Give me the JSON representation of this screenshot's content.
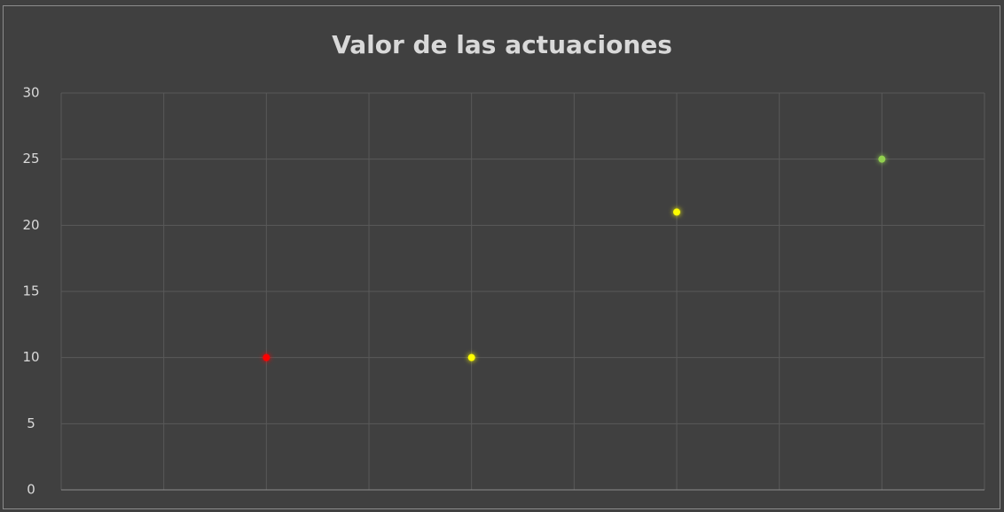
{
  "chart_data": {
    "type": "scatter",
    "title": "Valor de las actuaciones",
    "x": [
      2,
      4,
      6,
      8
    ],
    "values": [
      10,
      10,
      21,
      25
    ],
    "colors": [
      "#ff0000",
      "#ffff00",
      "#ffff00",
      "#92d050"
    ],
    "xlim": [
      0,
      9
    ],
    "xticks": [
      0,
      1,
      2,
      3,
      4,
      5,
      6,
      7,
      8,
      9
    ],
    "ylim": [
      0,
      30
    ],
    "yticks": [
      0,
      5,
      10,
      15,
      20,
      25,
      30
    ],
    "grid": true
  }
}
